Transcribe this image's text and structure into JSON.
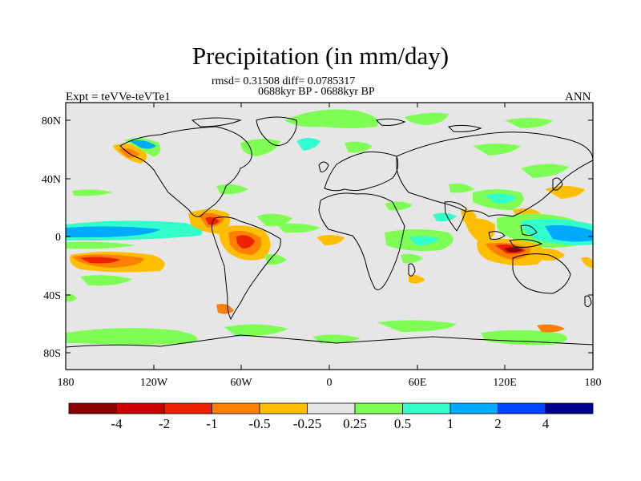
{
  "plot": {
    "title": "Precipitation (in mm/day)",
    "stats": "rmsd= 0.31508 diff= 0.0785317",
    "period": "0688kyr BP - 0688kyr BP",
    "experiment": "Expt = teVVe-teVTe1",
    "season": "ANN"
  },
  "axes": {
    "lat_labels": [
      "80N",
      "40N",
      "0",
      "40S",
      "80S"
    ],
    "lon_labels": [
      "180",
      "120W",
      "60W",
      "0",
      "60E",
      "120E",
      "180"
    ]
  },
  "colorbar": {
    "labels": [
      "-4",
      "-2",
      "-1",
      "-0.5",
      "-0.25",
      "0.25",
      "0.5",
      "1",
      "2",
      "4"
    ],
    "colors": [
      "#8b0000",
      "#cc0000",
      "#ee2200",
      "#ff7f00",
      "#ffbf00",
      "#e6e6e6",
      "#7fff55",
      "#33ffcc",
      "#00aaff",
      "#0044ff",
      "#000090"
    ]
  },
  "colors": {
    "background_field": "#e6e6e6",
    "coastline": "#000000"
  }
}
